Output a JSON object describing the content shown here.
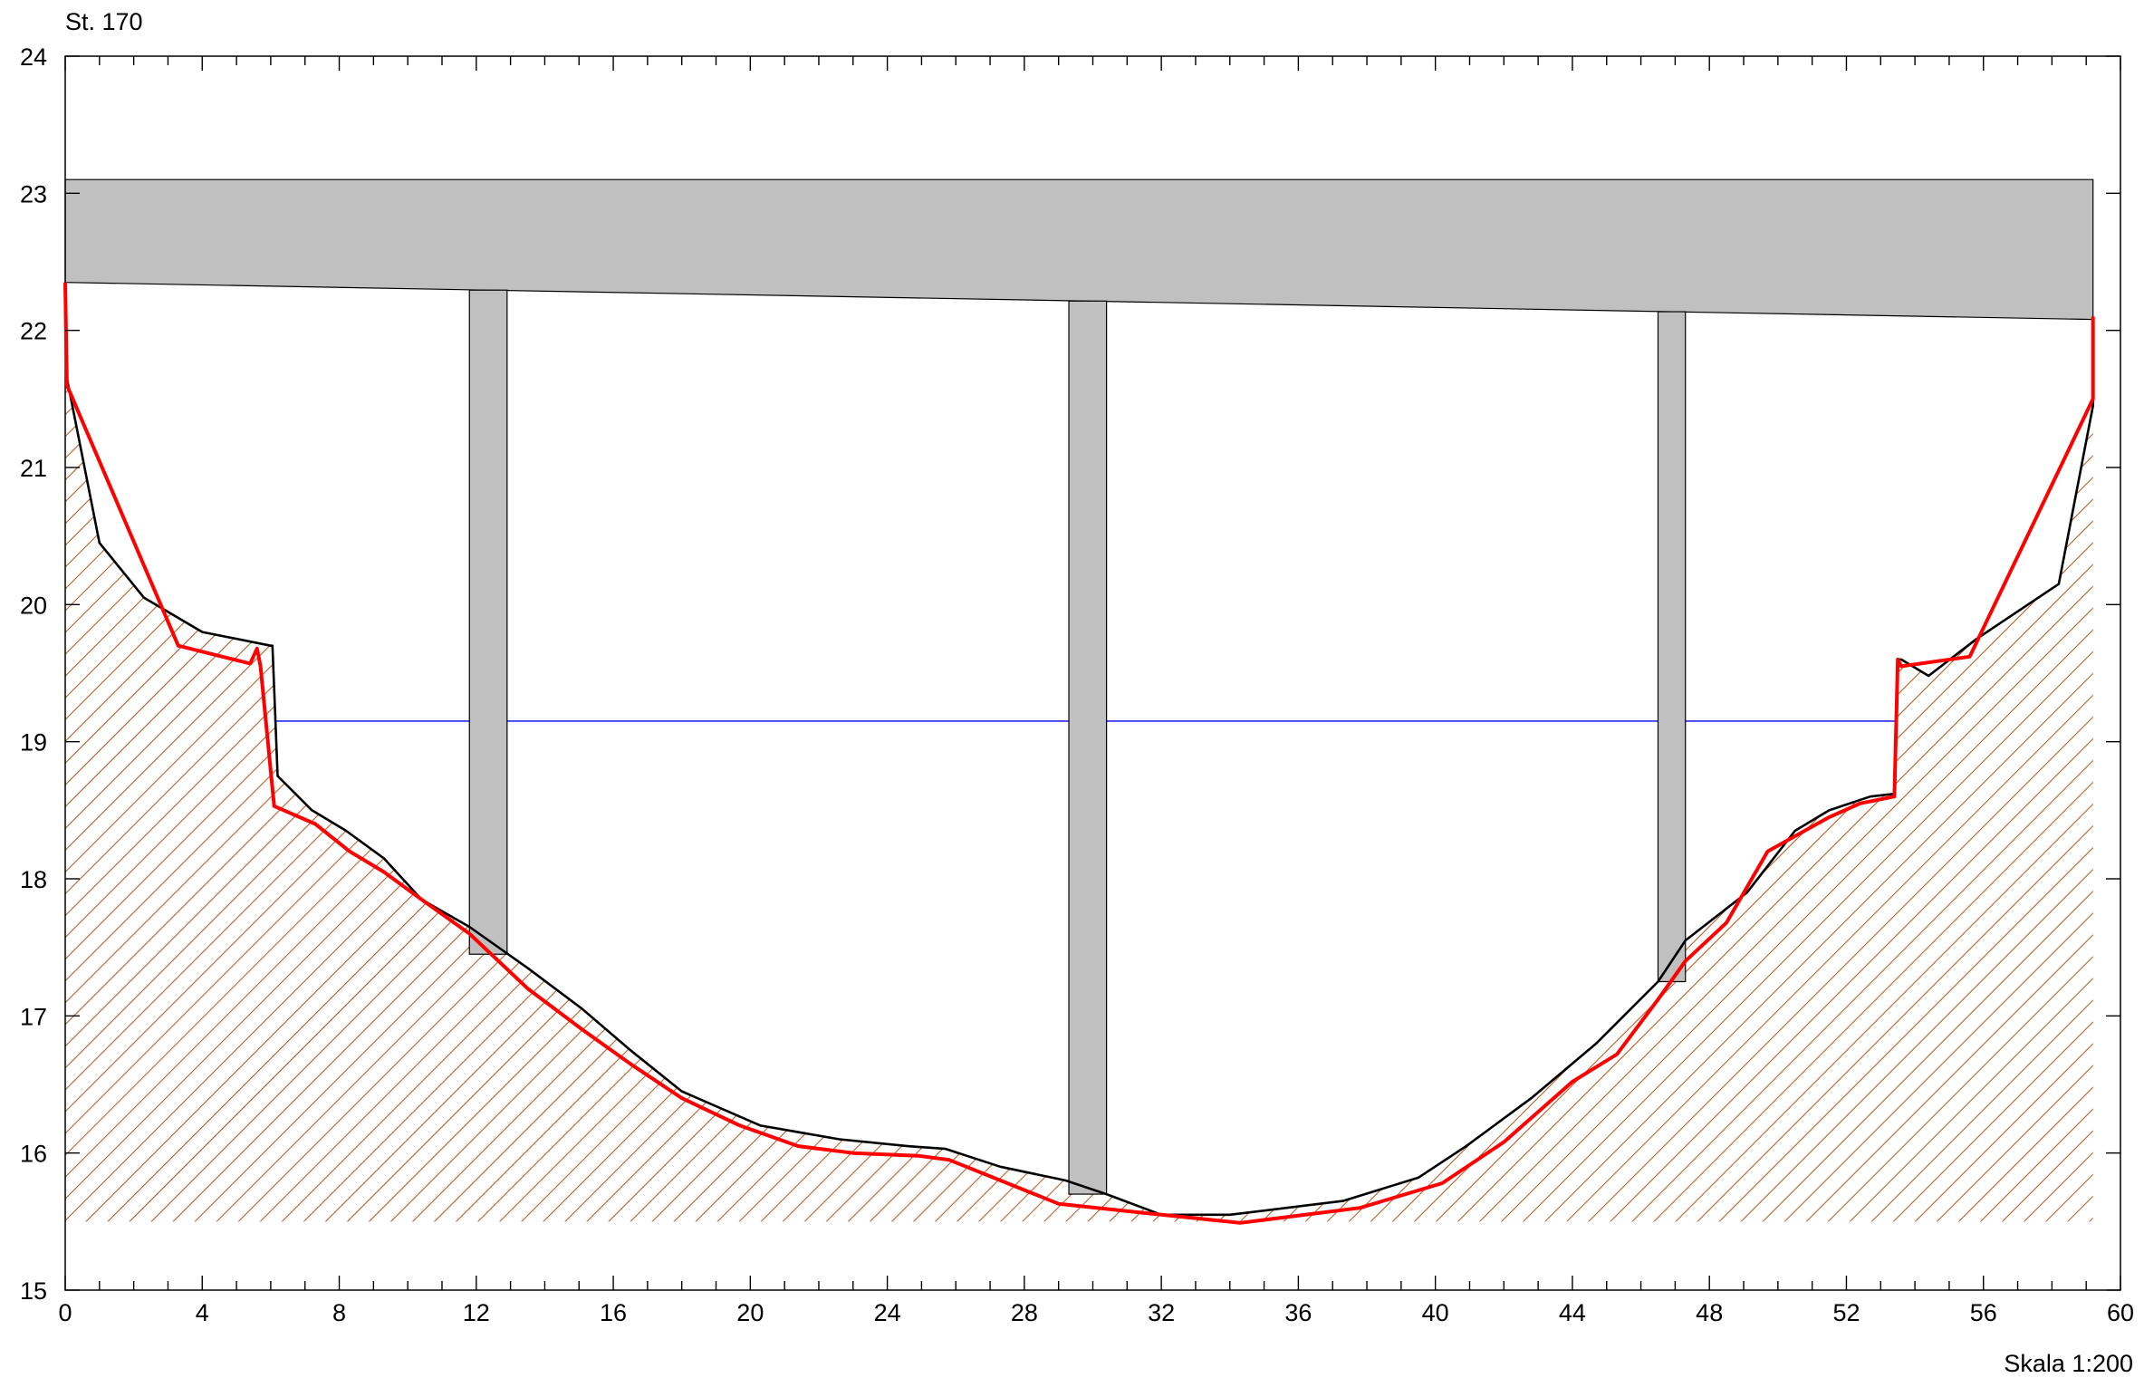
{
  "station_label": "St. 170",
  "scale_label": "Skala 1:200",
  "chart_data": {
    "type": "line",
    "title": "St. 170",
    "xlim": [
      0,
      60
    ],
    "ylim": [
      15,
      24
    ],
    "x_ticks": [
      0,
      4,
      8,
      12,
      16,
      20,
      24,
      28,
      32,
      36,
      40,
      44,
      48,
      52,
      56,
      60
    ],
    "y_ticks": [
      15,
      16,
      17,
      18,
      19,
      20,
      21,
      22,
      23,
      24
    ],
    "colors": {
      "bridge": "#c0c0c0",
      "red_profile": "#ff0000",
      "black_profile": "#000000",
      "water": "#0000ff",
      "hatch": "#b5612a"
    },
    "bridge_deck": {
      "x_start": 0,
      "x_end": 59.2,
      "top": 23.1,
      "soffit": [
        [
          0,
          22.35
        ],
        [
          59.2,
          22.08
        ]
      ]
    },
    "piers": [
      {
        "x_start": 11.8,
        "x_end": 12.9,
        "bottom": 17.45
      },
      {
        "x_start": 29.3,
        "x_end": 30.4,
        "bottom": 15.7
      },
      {
        "x_start": 46.5,
        "x_end": 47.3,
        "bottom": 17.25
      }
    ],
    "water_level": {
      "y": 19.15,
      "x_start": 6.1,
      "x_end": 53.5
    },
    "terrain_base": 15.5,
    "series": [
      {
        "role": "black_profile",
        "x": [
          0,
          0.05,
          1,
          2.3,
          4,
          6,
          6.05,
          6.2,
          7.2,
          8.2,
          9.3,
          10.4,
          11.8,
          13.5,
          15.1,
          16.5,
          18,
          20.3,
          22.6,
          24.6,
          25.7,
          27.3,
          29.2,
          30.4,
          32,
          34,
          37.3,
          39.5,
          40.9,
          42.8,
          44.7,
          46.5,
          47.3,
          49.1,
          50.5,
          51.5,
          52.7,
          53.4,
          53.5,
          53.6,
          54.4,
          55.8,
          58.2,
          59.2,
          59.2
        ],
        "y": [
          22.35,
          21.65,
          20.45,
          20.05,
          19.8,
          19.7,
          19.7,
          18.75,
          18.5,
          18.35,
          18.15,
          17.85,
          17.65,
          17.35,
          17.05,
          16.75,
          16.45,
          16.2,
          16.1,
          16.05,
          16.03,
          15.9,
          15.8,
          15.7,
          15.55,
          15.55,
          15.65,
          15.82,
          16.05,
          16.4,
          16.8,
          17.25,
          17.55,
          17.9,
          18.35,
          18.5,
          18.6,
          18.62,
          19.6,
          19.6,
          19.48,
          19.75,
          20.15,
          21.45,
          22.08
        ]
      },
      {
        "role": "red_profile",
        "x": [
          0,
          0.05,
          3.3,
          5.4,
          5.6,
          5.7,
          6.1,
          7.3,
          8.3,
          9.3,
          10.4,
          11.8,
          13.5,
          15.1,
          16.5,
          18,
          19.7,
          21.4,
          23,
          24.9,
          25.8,
          27.3,
          29,
          32,
          34.3,
          37.8,
          40.2,
          42,
          44,
          45.3,
          46.5,
          47.3,
          48.5,
          49.7,
          51.5,
          52.4,
          53.4,
          53.5,
          53.6,
          55.6,
          59.2,
          59.2
        ],
        "y": [
          22.35,
          21.6,
          19.7,
          19.57,
          19.68,
          19.55,
          18.53,
          18.4,
          18.2,
          18.05,
          17.85,
          17.6,
          17.2,
          16.9,
          16.65,
          16.4,
          16.2,
          16.05,
          16,
          15.98,
          15.95,
          15.8,
          15.63,
          15.55,
          15.49,
          15.6,
          15.78,
          16.08,
          16.52,
          16.72,
          17.12,
          17.4,
          17.68,
          18.2,
          18.45,
          18.55,
          18.6,
          19.6,
          19.55,
          19.62,
          21.5,
          22.1
        ]
      }
    ]
  }
}
